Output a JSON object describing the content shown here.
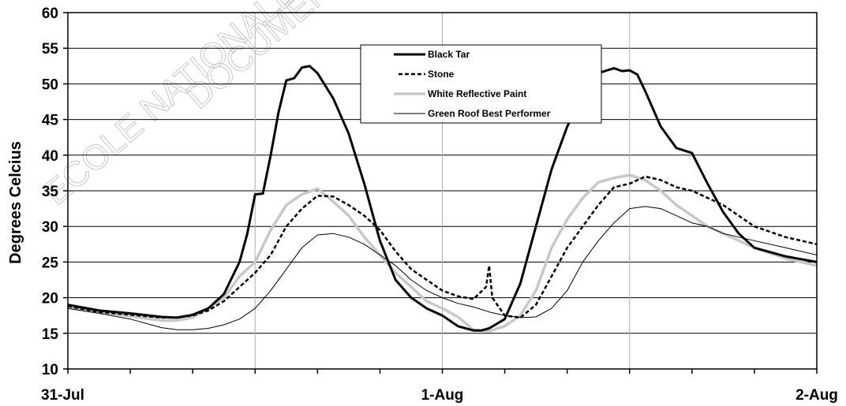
{
  "chart_data": {
    "type": "line",
    "title": "",
    "xlabel": "",
    "ylabel": "Degrees Celcius",
    "ylim": [
      10,
      60
    ],
    "y_ticks": [
      10,
      15,
      20,
      25,
      30,
      35,
      40,
      45,
      50,
      55,
      60
    ],
    "xlim": [
      0,
      48
    ],
    "x_unit": "hours from 31-Jul 00:00",
    "x_tick_labels": [
      {
        "x": 0,
        "label": "31-Jul"
      },
      {
        "x": 24,
        "label": "1-Aug"
      },
      {
        "x": 48,
        "label": "2-Aug"
      }
    ],
    "x_gridlines": [
      12,
      24,
      36
    ],
    "grid": true,
    "legend_position": "top-center",
    "watermark": [
      "ECOLE NATIONALE",
      "DOCUMENT"
    ],
    "series": [
      {
        "name": "Black Tar",
        "color": "#000000",
        "style": "solid-thick",
        "points": [
          [
            0,
            19
          ],
          [
            2,
            18.2
          ],
          [
            4,
            17.8
          ],
          [
            6,
            17.3
          ],
          [
            7,
            17.2
          ],
          [
            8,
            17.6
          ],
          [
            9,
            18.5
          ],
          [
            10,
            20.5
          ],
          [
            11,
            25
          ],
          [
            11.5,
            29
          ],
          [
            12,
            34.5
          ],
          [
            12.5,
            34.6
          ],
          [
            13,
            40
          ],
          [
            13.5,
            46
          ],
          [
            14,
            50.5
          ],
          [
            14.5,
            50.8
          ],
          [
            15,
            52.3
          ],
          [
            15.5,
            52.5
          ],
          [
            16,
            51.5
          ],
          [
            17,
            48
          ],
          [
            18,
            43
          ],
          [
            19,
            36
          ],
          [
            20,
            28
          ],
          [
            21,
            22.5
          ],
          [
            22,
            20
          ],
          [
            23,
            18.5
          ],
          [
            24,
            17.5
          ],
          [
            25,
            16
          ],
          [
            26,
            15.4
          ],
          [
            26.5,
            15.4
          ],
          [
            27,
            15.7
          ],
          [
            28,
            17
          ],
          [
            29,
            22
          ],
          [
            30,
            30
          ],
          [
            31,
            38
          ],
          [
            32,
            44
          ],
          [
            33,
            48.5
          ],
          [
            34,
            51.5
          ],
          [
            35,
            52.2
          ],
          [
            35.5,
            51.8
          ],
          [
            36,
            51.9
          ],
          [
            36.5,
            51.3
          ],
          [
            37,
            49
          ],
          [
            38,
            44
          ],
          [
            39,
            41
          ],
          [
            40,
            40.3
          ],
          [
            41,
            36
          ],
          [
            42,
            32
          ],
          [
            43,
            29
          ],
          [
            44,
            27
          ],
          [
            46,
            25.8
          ],
          [
            48,
            25
          ]
        ]
      },
      {
        "name": "Stone",
        "color": "#000000",
        "style": "dashed",
        "points": [
          [
            0,
            18.8
          ],
          [
            2,
            18
          ],
          [
            4,
            17.6
          ],
          [
            6,
            17.2
          ],
          [
            7,
            17.2
          ],
          [
            8,
            17.5
          ],
          [
            9,
            18.2
          ],
          [
            10,
            19.5
          ],
          [
            11,
            21.5
          ],
          [
            12,
            23.5
          ],
          [
            13,
            26
          ],
          [
            14,
            30
          ],
          [
            15,
            32.5
          ],
          [
            16,
            34.3
          ],
          [
            17,
            34.2
          ],
          [
            18,
            33
          ],
          [
            19,
            31.5
          ],
          [
            20,
            29.5
          ],
          [
            21,
            26.5
          ],
          [
            22,
            24
          ],
          [
            23,
            22.5
          ],
          [
            24,
            21
          ],
          [
            25,
            20.2
          ],
          [
            26,
            19.8
          ],
          [
            26.8,
            21.5
          ],
          [
            27,
            24.5
          ],
          [
            27.2,
            20
          ],
          [
            28,
            17.5
          ],
          [
            29,
            17.2
          ],
          [
            30,
            19
          ],
          [
            31,
            23
          ],
          [
            32,
            27
          ],
          [
            33,
            30
          ],
          [
            34,
            33
          ],
          [
            35,
            35.5
          ],
          [
            36,
            36
          ],
          [
            37,
            37
          ],
          [
            38,
            36.5
          ],
          [
            39,
            35.5
          ],
          [
            40,
            35
          ],
          [
            41,
            34
          ],
          [
            42,
            33
          ],
          [
            44,
            30
          ],
          [
            46,
            28.5
          ],
          [
            48,
            27.5
          ]
        ]
      },
      {
        "name": "White Reflective Paint",
        "color": "#c8c8c8",
        "style": "solid-thick",
        "points": [
          [
            0,
            18.6
          ],
          [
            2,
            18
          ],
          [
            4,
            17.4
          ],
          [
            6,
            16.8
          ],
          [
            7,
            16.8
          ],
          [
            8,
            17.2
          ],
          [
            9,
            18.5
          ],
          [
            10,
            20
          ],
          [
            11,
            23
          ],
          [
            12,
            25
          ],
          [
            13,
            29.5
          ],
          [
            14,
            33
          ],
          [
            15,
            34.5
          ],
          [
            16,
            35.3
          ],
          [
            17,
            33.5
          ],
          [
            18,
            31.5
          ],
          [
            19,
            28.5
          ],
          [
            20,
            26
          ],
          [
            21,
            23.5
          ],
          [
            22,
            21.5
          ],
          [
            23,
            19.5
          ],
          [
            24,
            18.5
          ],
          [
            25,
            17.3
          ],
          [
            26,
            15.5
          ],
          [
            27,
            15.3
          ],
          [
            28,
            16
          ],
          [
            29,
            17.5
          ],
          [
            30,
            21
          ],
          [
            31,
            27
          ],
          [
            32,
            31
          ],
          [
            33,
            34
          ],
          [
            34,
            36.2
          ],
          [
            35,
            36.8
          ],
          [
            36,
            37.2
          ],
          [
            37,
            36.5
          ],
          [
            38,
            35
          ],
          [
            39,
            33
          ],
          [
            40,
            31.5
          ],
          [
            41,
            30
          ],
          [
            42,
            29
          ],
          [
            44,
            27
          ],
          [
            46,
            25.5
          ],
          [
            48,
            24.5
          ]
        ]
      },
      {
        "name": "Green Roof Best Performer",
        "color": "#000000",
        "style": "solid-thin",
        "points": [
          [
            0,
            18.5
          ],
          [
            2,
            17.8
          ],
          [
            4,
            17
          ],
          [
            6,
            15.8
          ],
          [
            7,
            15.5
          ],
          [
            8,
            15.5
          ],
          [
            9,
            15.7
          ],
          [
            10,
            16.2
          ],
          [
            11,
            17
          ],
          [
            12,
            18.5
          ],
          [
            13,
            21
          ],
          [
            14,
            24
          ],
          [
            15,
            27
          ],
          [
            16,
            28.8
          ],
          [
            17,
            29
          ],
          [
            18,
            28.5
          ],
          [
            19,
            27.5
          ],
          [
            20,
            26
          ],
          [
            21,
            24.5
          ],
          [
            22,
            22.5
          ],
          [
            23,
            21
          ],
          [
            24,
            20
          ],
          [
            25,
            19.2
          ],
          [
            26,
            18.7
          ],
          [
            27,
            18
          ],
          [
            28,
            17.5
          ],
          [
            29,
            17.2
          ],
          [
            30,
            17.3
          ],
          [
            31,
            18.5
          ],
          [
            32,
            21
          ],
          [
            33,
            25
          ],
          [
            34,
            28
          ],
          [
            35,
            30.5
          ],
          [
            36,
            32.5
          ],
          [
            37,
            32.8
          ],
          [
            38,
            32.5
          ],
          [
            39,
            31.5
          ],
          [
            40,
            30.5
          ],
          [
            41,
            30
          ],
          [
            42,
            29
          ],
          [
            44,
            28
          ],
          [
            46,
            27
          ],
          [
            48,
            26
          ]
        ]
      }
    ]
  }
}
